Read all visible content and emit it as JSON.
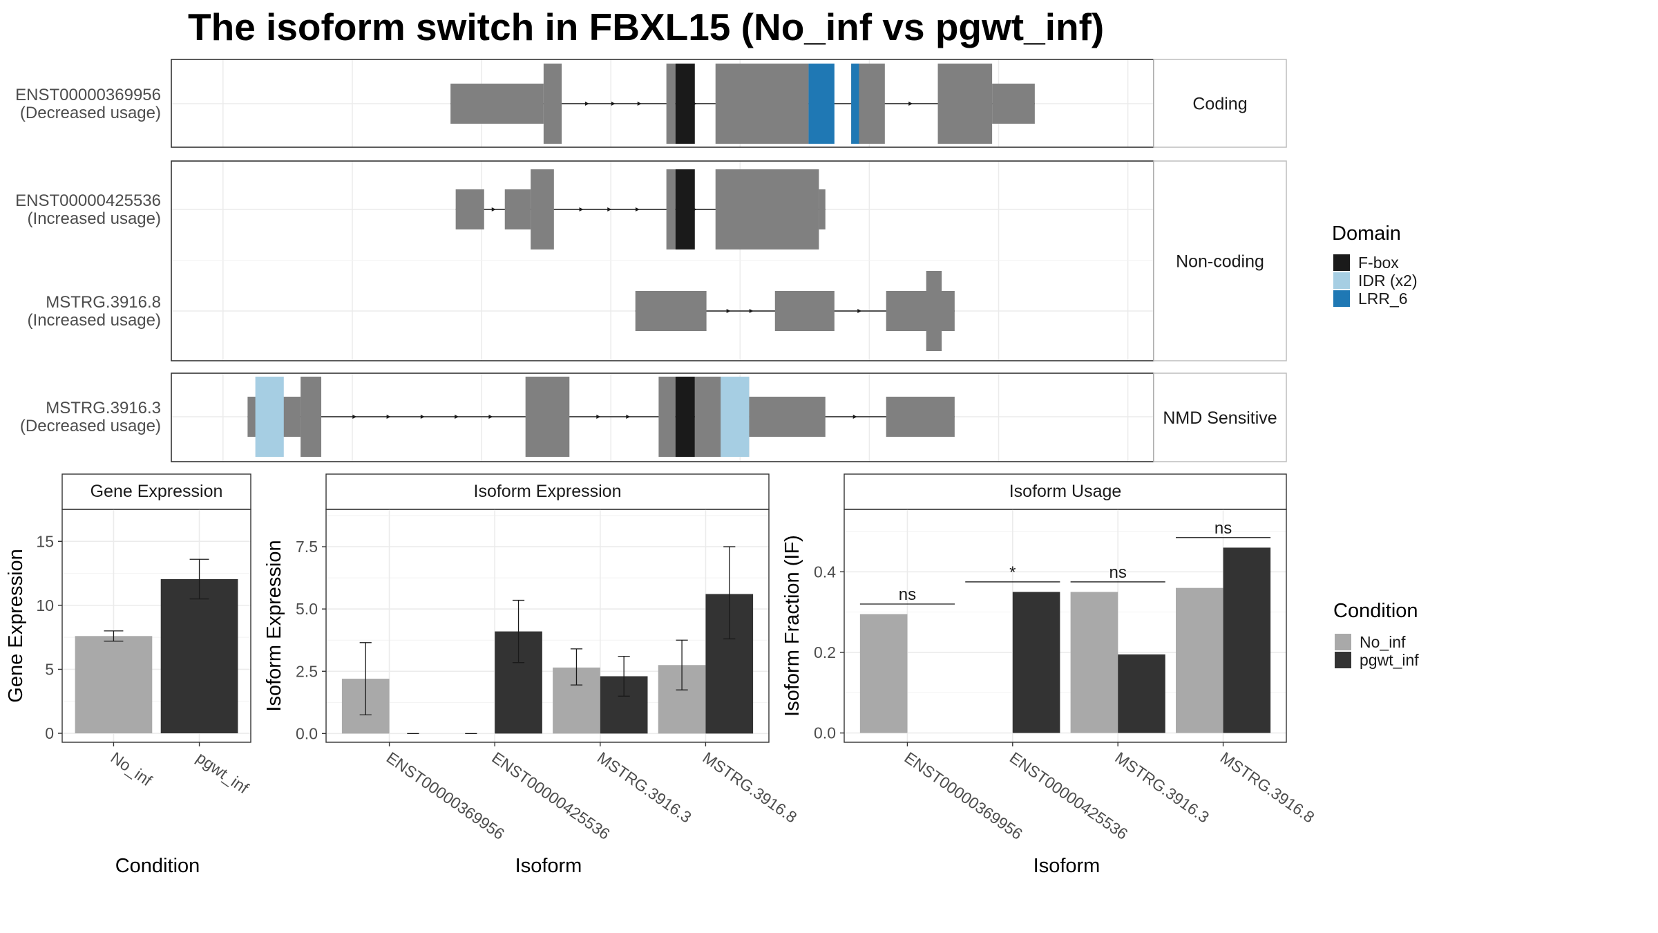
{
  "title": "The isoform switch in FBXL15 (No_inf vs pgwt_inf)",
  "colors": {
    "F-box": "#1a1a1a",
    "IDR (x2)": "#a6cee3",
    "LRR_6": "#1f78b4",
    "exon": "#808080",
    "No_inf": "#a9a9a9",
    "pgwt_inf": "#333333"
  },
  "structure": {
    "panels": [
      {
        "facet": "Coding",
        "isoforms": [
          {
            "id": "ENST00000369956",
            "usage": "(Decreased usage)",
            "exons": [
              [
                376,
                448,
                "utr"
              ],
              [
                448,
                462,
                "cds"
              ],
              [
                543,
                550,
                "cds"
              ],
              [
                581,
                653,
                "cds"
              ],
              [
                686,
                712,
                "cds"
              ],
              [
                753,
                795,
                "cds"
              ],
              [
                795,
                828,
                "utr"
              ]
            ],
            "domains": [
              [
                550,
                565,
                "F-box"
              ],
              [
                653,
                673,
                "LRR_6"
              ],
              [
                686,
                692,
                "LRR_6"
              ]
            ]
          }
        ]
      },
      {
        "facet": "Non-coding",
        "isoforms": [
          {
            "id": "ENST00000425536",
            "usage": "(Increased usage)",
            "exons": [
              [
                380,
                402,
                "utr"
              ],
              [
                418,
                438,
                "utr"
              ],
              [
                438,
                456,
                "cds"
              ],
              [
                543,
                550,
                "cds"
              ],
              [
                581,
                661,
                "cds"
              ],
              [
                661,
                666,
                "utr"
              ]
            ],
            "domains": [
              [
                550,
                565,
                "F-box"
              ]
            ]
          },
          {
            "id": "MSTRG.3916.8",
            "usage": "(Increased usage)",
            "exons": [
              [
                519,
                574,
                "utr"
              ],
              [
                627,
                673,
                "utr"
              ],
              [
                713,
                766,
                "utr"
              ],
              [
                744,
                756,
                "cds"
              ]
            ],
            "domains": []
          }
        ]
      },
      {
        "facet": "NMD Sensitive",
        "isoforms": [
          {
            "id": "MSTRG.3916.3",
            "usage": "(Decreased usage)",
            "exons": [
              [
                219,
                260,
                "utr"
              ],
              [
                260,
                276,
                "cds"
              ],
              [
                434,
                468,
                "cds"
              ],
              [
                537,
                550,
                "cds"
              ],
              [
                565,
                607,
                "cds"
              ],
              [
                607,
                666,
                "utr"
              ],
              [
                713,
                766,
                "utr"
              ]
            ],
            "domains": [
              [
                225,
                247,
                "IDR (x2)"
              ],
              [
                550,
                565,
                "F-box"
              ],
              [
                585,
                607,
                "IDR (x2)"
              ]
            ]
          }
        ]
      }
    ]
  },
  "legend_domain": {
    "title": "Domain",
    "items": [
      "F-box",
      "IDR (x2)",
      "LRR_6"
    ]
  },
  "legend_condition": {
    "title": "Condition",
    "items": [
      "No_inf",
      "pgwt_inf"
    ]
  },
  "chart_data": [
    {
      "type": "bar",
      "title": "Gene Expression",
      "xlabel": "Condition",
      "ylabel": "Gene Expression",
      "categories": [
        "No_inf",
        "pgwt_inf"
      ],
      "values": [
        7.6,
        12.05
      ],
      "error_low": [
        7.2,
        10.5
      ],
      "error_high": [
        8.0,
        13.6
      ],
      "ylim": [
        -0.7,
        17.5
      ],
      "yticks": [
        0,
        5,
        10,
        15
      ],
      "yticklabels": [
        "0",
        "5",
        "10",
        "15"
      ],
      "grid": true
    },
    {
      "type": "bar",
      "title": "Isoform Expression",
      "xlabel": "Isoform",
      "ylabel": "Isoform Expression",
      "categories": [
        "ENST00000369956",
        "ENST00000425536",
        "MSTRG.3916.3",
        "MSTRG.3916.8"
      ],
      "series": [
        {
          "name": "No_inf",
          "values": [
            2.2,
            0,
            2.65,
            2.75
          ],
          "error_low": [
            0.75,
            0,
            1.95,
            1.75
          ],
          "error_high": [
            3.65,
            0,
            3.4,
            3.75
          ]
        },
        {
          "name": "pgwt_inf",
          "values": [
            0,
            4.1,
            2.3,
            5.6
          ],
          "error_low": [
            0,
            2.85,
            1.5,
            3.8
          ],
          "error_high": [
            0,
            5.35,
            3.1,
            7.5
          ]
        }
      ],
      "ylim": [
        -0.35,
        9.0
      ],
      "yticks": [
        0,
        2.5,
        5,
        7.5
      ],
      "yticklabels": [
        "0.0",
        "2.5",
        "5.0",
        "7.5"
      ],
      "grid": true
    },
    {
      "type": "bar",
      "title": "Isoform Usage",
      "xlabel": "Isoform",
      "ylabel": "Isoform Fraction (IF)",
      "categories": [
        "ENST00000369956",
        "ENST00000425536",
        "MSTRG.3916.3",
        "MSTRG.3916.8"
      ],
      "series": [
        {
          "name": "No_inf",
          "values": [
            0.295,
            0,
            0.35,
            0.36
          ]
        },
        {
          "name": "pgwt_inf",
          "values": [
            0,
            0.35,
            0.195,
            0.46
          ]
        }
      ],
      "significance": [
        "ns",
        "*",
        "ns",
        "ns"
      ],
      "sig_line_y": [
        0.32,
        0.375,
        0.375,
        0.485
      ],
      "ylim": [
        -0.023,
        0.555
      ],
      "yticks": [
        0,
        0.2,
        0.4
      ],
      "yticklabels": [
        "0.0",
        "0.2",
        "0.4"
      ],
      "grid": true
    }
  ]
}
